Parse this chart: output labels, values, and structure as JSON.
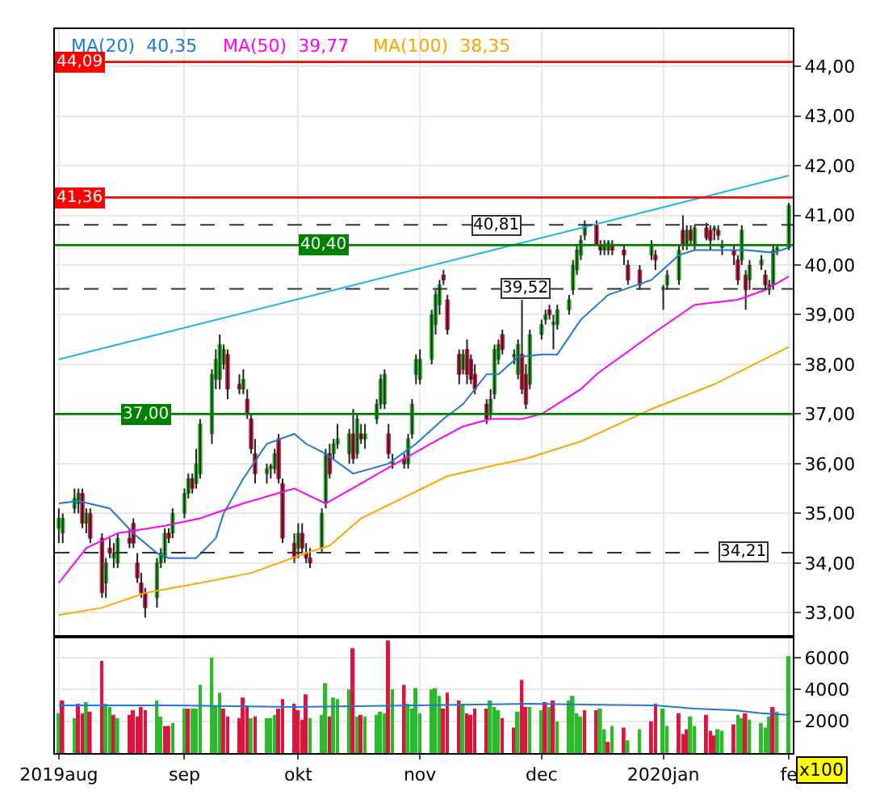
{
  "chart_data": [
    {
      "type": "candlestick",
      "x": [
        "2019-08-01",
        "2019-08-02",
        "2019-08-05",
        "2019-08-06",
        "2019-08-07",
        "2019-08-08",
        "2019-08-09",
        "2019-08-12",
        "2019-08-13",
        "2019-08-14",
        "2019-08-15",
        "2019-08-16",
        "2019-08-19",
        "2019-08-20",
        "2019-08-21",
        "2019-08-22",
        "2019-08-23",
        "2019-08-26",
        "2019-08-27",
        "2019-08-28",
        "2019-08-29",
        "2019-08-30",
        "2019-09-02",
        "2019-09-03",
        "2019-09-04",
        "2019-09-05",
        "2019-09-06",
        "2019-09-09",
        "2019-09-10",
        "2019-09-11",
        "2019-09-12",
        "2019-09-13",
        "2019-09-16",
        "2019-09-17",
        "2019-09-18",
        "2019-09-19",
        "2019-09-20",
        "2019-09-23",
        "2019-09-24",
        "2019-09-25",
        "2019-09-26",
        "2019-09-27",
        "2019-09-30",
        "2019-10-01",
        "2019-10-02",
        "2019-10-03",
        "2019-10-04",
        "2019-10-07",
        "2019-10-08",
        "2019-10-09",
        "2019-10-10",
        "2019-10-11",
        "2019-10-14",
        "2019-10-15",
        "2019-10-16",
        "2019-10-17",
        "2019-10-18",
        "2019-10-21",
        "2019-10-22",
        "2019-10-23",
        "2019-10-24",
        "2019-10-25",
        "2019-10-28",
        "2019-10-29",
        "2019-10-30",
        "2019-10-31",
        "2019-11-01",
        "2019-11-04",
        "2019-11-05",
        "2019-11-06",
        "2019-11-07",
        "2019-11-08",
        "2019-11-11",
        "2019-11-12",
        "2019-11-13",
        "2019-11-14",
        "2019-11-15",
        "2019-11-18",
        "2019-11-19",
        "2019-11-20",
        "2019-11-21",
        "2019-11-22",
        "2019-11-25",
        "2019-11-26",
        "2019-11-27",
        "2019-11-28",
        "2019-11-29",
        "2019-12-02",
        "2019-12-03",
        "2019-12-04",
        "2019-12-05",
        "2019-12-06",
        "2019-12-09",
        "2019-12-10",
        "2019-12-11",
        "2019-12-12",
        "2019-12-13",
        "2019-12-16",
        "2019-12-17",
        "2019-12-18",
        "2019-12-19",
        "2019-12-20",
        "2019-12-23",
        "2019-12-24",
        "2019-12-27",
        "2019-12-30",
        "2019-12-31",
        "2020-01-02",
        "2020-01-03",
        "2020-01-06",
        "2020-01-07",
        "2020-01-08",
        "2020-01-09",
        "2020-01-10",
        "2020-01-13",
        "2020-01-14",
        "2020-01-15",
        "2020-01-16",
        "2020-01-17",
        "2020-01-20",
        "2020-01-21",
        "2020-01-22",
        "2020-01-23",
        "2020-01-24",
        "2020-01-27",
        "2020-01-28",
        "2020-01-29",
        "2020-01-30",
        "2020-01-31",
        "2020-02-03"
      ],
      "series": [
        {
          "colors": [
            "#2eb82e",
            "#2eb82e",
            "#2eb82e",
            "#2eb82e",
            "#d8163f",
            "#2eb82e",
            "#d8163f",
            "#d8163f",
            "#2eb82e",
            "#d8163f",
            "#2eb82e",
            "#2eb82e",
            "#d8163f",
            "#d8163f",
            "#d8163f",
            "#d8163f",
            "#d8163f",
            "#2eb82e",
            "#2eb82e",
            "#2eb82e",
            "#d8163f",
            "#2eb82e",
            "#2eb82e",
            "#2eb82e",
            "#d8163f",
            "#2eb82e",
            "#2eb82e",
            "#2eb82e",
            "#2eb82e",
            "#2eb82e",
            "#2eb82e",
            "#d8163f",
            "#d8163f",
            "#2eb82e",
            "#d8163f",
            "#d8163f",
            "#d8163f",
            "#2eb82e",
            "#2eb82e",
            "#2eb82e",
            "#d8163f",
            "#d8163f",
            "#d8163f",
            "#2eb82e",
            "#d8163f",
            "#d8163f",
            "#d8163f",
            "#2eb82e",
            "#2eb82e",
            "#d8163f",
            "#2eb82e",
            "#2eb82e",
            "#2eb82e",
            "#d8163f",
            "#2eb82e",
            "#d8163f",
            "#2eb82e",
            "#2eb82e",
            "#2eb82e",
            "#2eb82e",
            "#d8163f",
            "#2eb82e",
            "#d8163f",
            "#2eb82e",
            "#2eb82e",
            "#2eb82e",
            "#2eb82e",
            "#2eb82e",
            "#2eb82e",
            "#2eb82e",
            "#d8163f",
            "#d8163f",
            "#d8163f",
            "#2eb82e",
            "#d8163f",
            "#d8163f",
            "#d8163f",
            "#d8163f",
            "#2eb82e",
            "#2eb82e",
            "#2eb82e",
            "#d8163f",
            "#2eb82e",
            "#2eb82e",
            "#d8163f",
            "#d8163f",
            "#2eb82e",
            "#2eb82e",
            "#2eb82e",
            "#d8163f",
            "#2eb82e",
            "#2eb82e",
            "#2eb82e",
            "#2eb82e",
            "#2eb82e",
            "#2eb82e",
            "#2eb82e",
            "#d8163f",
            "#d8163f",
            "#2eb82e",
            "#2eb82e",
            "#d8163f",
            "#d8163f",
            "#d8163f",
            "#d8163f",
            "#2eb82e",
            "#d8163f",
            "#2eb82e",
            "#2eb82e",
            "#2eb82e",
            "#d8163f",
            "#2eb82e",
            "#d8163f",
            "#2eb82e",
            "#d8163f",
            "#d8163f",
            "#2eb82e",
            "#d8163f",
            "#2eb82e",
            "#d8163f",
            "#d8163f",
            "#2eb82e",
            "#d8163f",
            "#2eb82e",
            "#2eb82e",
            "#d8163f",
            "#2eb82e",
            "#2eb82e",
            "#2eb82e",
            "#2eb82e"
          ],
          "ohlc": [
            [
              34.7,
              35.1,
              34.4,
              34.9
            ],
            [
              34.6,
              35.0,
              34.4,
              34.9
            ],
            [
              35.1,
              35.5,
              35.0,
              35.3
            ],
            [
              35.2,
              35.5,
              35.0,
              35.4
            ],
            [
              35.4,
              35.5,
              34.7,
              34.8
            ],
            [
              34.8,
              35.1,
              34.6,
              35.0
            ],
            [
              35.0,
              35.1,
              34.4,
              34.5
            ],
            [
              34.5,
              34.6,
              33.3,
              33.4
            ],
            [
              33.6,
              34.1,
              33.3,
              34.0
            ],
            [
              34.3,
              34.5,
              34.1,
              34.2
            ],
            [
              34.1,
              34.4,
              33.9,
              34.2
            ],
            [
              34.0,
              34.6,
              33.9,
              34.5
            ],
            [
              34.5,
              34.7,
              34.3,
              34.4
            ],
            [
              34.8,
              34.9,
              34.3,
              34.4
            ],
            [
              34.0,
              34.2,
              33.6,
              33.7
            ],
            [
              33.6,
              33.8,
              33.3,
              33.4
            ],
            [
              33.4,
              33.5,
              32.9,
              33.1
            ],
            [
              33.3,
              34.1,
              33.1,
              34.0
            ],
            [
              34.0,
              34.3,
              33.9,
              34.2
            ],
            [
              34.1,
              34.7,
              34.0,
              34.6
            ],
            [
              34.6,
              34.7,
              34.4,
              34.5
            ],
            [
              34.6,
              35.1,
              34.5,
              35.0
            ],
            [
              35.0,
              35.5,
              34.9,
              35.4
            ],
            [
              35.4,
              35.8,
              35.3,
              35.7
            ],
            [
              35.7,
              35.8,
              35.4,
              35.5
            ],
            [
              35.6,
              36.3,
              35.5,
              36.0
            ],
            [
              35.8,
              36.9,
              35.7,
              36.8
            ],
            [
              36.6,
              37.9,
              36.4,
              37.8
            ],
            [
              37.7,
              38.3,
              37.5,
              38.1
            ],
            [
              37.7,
              38.6,
              37.5,
              38.4
            ],
            [
              38.0,
              38.4,
              37.9,
              38.3
            ],
            [
              38.2,
              38.3,
              37.3,
              37.5
            ],
            [
              37.6,
              37.8,
              37.4,
              37.5
            ],
            [
              37.5,
              37.9,
              37.4,
              37.7
            ],
            [
              37.3,
              37.5,
              36.9,
              37.0
            ],
            [
              36.9,
              37.0,
              36.2,
              36.3
            ],
            [
              36.2,
              36.5,
              35.6,
              35.8
            ],
            [
              35.8,
              36.0,
              35.6,
              35.9
            ],
            [
              35.9,
              36.0,
              35.7,
              35.95
            ],
            [
              35.9,
              36.3,
              35.8,
              36.2
            ],
            [
              36.5,
              36.6,
              35.6,
              35.7
            ],
            [
              35.6,
              35.7,
              34.4,
              34.5
            ],
            [
              34.4,
              34.6,
              34.0,
              34.1
            ],
            [
              34.3,
              34.8,
              34.1,
              34.6
            ],
            [
              34.6,
              34.8,
              34.2,
              34.3
            ],
            [
              34.2,
              34.4,
              34.0,
              34.1
            ],
            [
              34.1,
              34.3,
              33.9,
              34.0
            ],
            [
              34.3,
              35.1,
              34.2,
              35.0
            ],
            [
              35.2,
              36.3,
              35.1,
              36.2
            ],
            [
              36.2,
              36.4,
              35.7,
              35.8
            ],
            [
              36.2,
              36.5,
              36.1,
              36.4
            ],
            [
              36.4,
              36.8,
              36.3,
              36.5
            ],
            [
              36.2,
              36.7,
              36.0,
              36.6
            ],
            [
              36.6,
              37.1,
              36.0,
              36.1
            ],
            [
              36.2,
              37.0,
              36.1,
              36.9
            ],
            [
              36.6,
              36.8,
              36.4,
              36.5
            ],
            [
              36.5,
              36.8,
              36.3,
              36.6
            ],
            [
              36.9,
              37.3,
              36.8,
              37.2
            ],
            [
              37.2,
              37.8,
              37.1,
              37.7
            ],
            [
              37.2,
              37.9,
              37.1,
              37.8
            ],
            [
              36.6,
              36.8,
              36.1,
              36.2
            ],
            [
              36.0,
              36.2,
              35.9,
              36.05
            ],
            [
              36.1,
              36.2,
              35.9,
              36.0
            ],
            [
              36.0,
              36.6,
              35.9,
              36.5
            ],
            [
              36.6,
              37.3,
              36.5,
              37.2
            ],
            [
              37.8,
              38.2,
              37.6,
              38.1
            ],
            [
              37.7,
              38.3,
              37.6,
              38.1
            ],
            [
              38.1,
              39.1,
              38.0,
              39.0
            ],
            [
              38.8,
              39.5,
              38.6,
              39.4
            ],
            [
              39.2,
              39.7,
              39.0,
              39.6
            ],
            [
              39.8,
              39.9,
              39.6,
              39.7
            ],
            [
              39.3,
              39.4,
              38.6,
              38.7
            ],
            [
              38.2,
              38.3,
              37.6,
              37.8
            ],
            [
              37.9,
              38.3,
              37.8,
              38.2
            ],
            [
              38.3,
              38.5,
              37.6,
              37.8
            ],
            [
              38.1,
              38.2,
              37.6,
              37.7
            ],
            [
              37.8,
              38.0,
              37.4,
              37.5
            ],
            [
              37.2,
              37.3,
              36.8,
              36.9
            ],
            [
              37.0,
              37.5,
              36.9,
              37.3
            ],
            [
              37.4,
              38.4,
              37.3,
              38.3
            ],
            [
              38.1,
              38.5,
              38.0,
              38.4
            ],
            [
              38.6,
              38.7,
              38.2,
              38.3
            ],
            [
              38.15,
              38.3,
              38.0,
              38.2
            ],
            [
              37.8,
              38.5,
              37.7,
              38.4
            ],
            [
              38.2,
              39.3,
              37.4,
              37.5
            ],
            [
              37.8,
              38.0,
              37.1,
              37.2
            ],
            [
              37.6,
              38.7,
              37.5,
              38.6
            ],
            [
              38.6,
              38.9,
              38.5,
              38.8
            ],
            [
              38.9,
              39.1,
              38.8,
              39.0
            ],
            [
              39.1,
              39.2,
              38.9,
              39.0
            ],
            [
              38.8,
              39.0,
              38.3,
              38.85
            ],
            [
              38.8,
              39.2,
              38.7,
              39.1
            ],
            [
              39.1,
              39.4,
              39.0,
              39.3
            ],
            [
              39.5,
              40.1,
              39.4,
              40.0
            ],
            [
              39.9,
              40.4,
              39.8,
              40.3
            ],
            [
              40.2,
              40.6,
              40.1,
              40.5
            ],
            [
              40.6,
              40.9,
              40.5,
              40.8
            ],
            [
              40.8,
              40.9,
              40.4,
              40.4
            ],
            [
              40.4,
              40.5,
              40.2,
              40.3
            ],
            [
              40.3,
              40.5,
              40.2,
              40.4
            ],
            [
              40.3,
              40.5,
              40.2,
              40.45
            ],
            [
              40.4,
              40.5,
              40.2,
              40.3
            ],
            [
              40.3,
              40.4,
              40.0,
              40.2
            ],
            [
              40.0,
              40.1,
              39.6,
              39.7
            ],
            [
              39.9,
              40.0,
              39.5,
              39.6
            ],
            [
              40.2,
              40.5,
              40.1,
              40.4
            ],
            [
              40.2,
              40.3,
              39.9,
              40.1
            ],
            [
              39.5,
              39.6,
              39.1,
              39.55
            ],
            [
              39.6,
              39.9,
              39.5,
              39.8
            ],
            [
              39.7,
              40.4,
              39.6,
              40.3
            ],
            [
              40.7,
              41.0,
              40.3,
              40.4
            ],
            [
              40.4,
              40.8,
              40.3,
              40.7
            ],
            [
              40.7,
              40.8,
              40.4,
              40.5
            ],
            [
              40.4,
              40.8,
              40.3,
              40.75
            ],
            [
              40.75,
              40.85,
              40.5,
              40.55
            ],
            [
              40.7,
              40.8,
              40.3,
              40.5
            ],
            [
              40.7,
              40.8,
              40.5,
              40.75
            ],
            [
              40.7,
              40.8,
              40.5,
              40.6
            ],
            [
              40.35,
              40.5,
              40.2,
              40.4
            ],
            [
              40.3,
              40.4,
              40.0,
              40.2
            ],
            [
              40.1,
              40.2,
              39.6,
              39.7
            ],
            [
              40.1,
              40.8,
              40.0,
              40.7
            ],
            [
              39.8,
              39.9,
              39.1,
              39.5
            ],
            [
              39.7,
              40.1,
              39.5,
              40.0
            ],
            [
              40.0,
              40.2,
              39.9,
              40.1
            ],
            [
              39.8,
              39.9,
              39.5,
              39.6
            ],
            [
              39.5,
              39.7,
              39.4,
              39.6
            ],
            [
              39.6,
              40.4,
              39.5,
              40.3
            ],
            [
              40.3,
              40.4,
              40.2,
              40.35
            ],
            [
              40.35,
              41.25,
              40.3,
              41.2
            ]
          ]
        },
        {
          "type": "line",
          "name": "MA(20)  40,35",
          "color": "#1f78d1",
          "x": [
            "2019-08-01",
            "2019-08-06",
            "2019-08-14",
            "2019-08-20",
            "2019-08-26",
            "2019-08-29",
            "2019-09-05",
            "2019-09-10",
            "2019-09-12",
            "2019-09-17",
            "2019-09-23",
            "2019-09-30",
            "2019-10-03",
            "2019-10-08",
            "2019-10-15",
            "2019-10-24",
            "2019-10-31",
            "2019-11-07",
            "2019-11-12",
            "2019-11-18",
            "2019-11-21",
            "2019-11-26",
            "2019-12-02",
            "2019-12-06",
            "2019-12-12",
            "2019-12-19",
            "2019-12-30",
            "2020-01-06",
            "2020-01-10",
            "2020-01-23",
            "2020-01-30",
            "2020-02-03"
          ],
          "values": [
            35.2,
            35.25,
            35.1,
            34.6,
            34.2,
            34.1,
            34.1,
            34.5,
            35.0,
            35.7,
            36.4,
            36.6,
            36.4,
            36.2,
            35.8,
            36.0,
            36.4,
            36.9,
            37.2,
            37.8,
            37.8,
            38.15,
            38.2,
            38.2,
            38.9,
            39.4,
            39.7,
            40.2,
            40.3,
            40.3,
            40.25,
            40.35
          ]
        },
        {
          "type": "line",
          "name": "MA(50)  39,77",
          "color": "#ff00ff",
          "x": [
            "2019-08-01",
            "2019-08-08",
            "2019-08-16",
            "2019-08-28",
            "2019-09-06",
            "2019-09-17",
            "2019-09-30",
            "2019-10-08",
            "2019-10-17",
            "2019-10-28",
            "2019-11-06",
            "2019-11-12",
            "2019-11-19",
            "2019-11-27",
            "2019-12-02",
            "2019-12-12",
            "2019-12-16",
            "2019-12-30",
            "2020-01-10",
            "2020-01-21",
            "2020-01-28",
            "2020-02-03"
          ],
          "values": [
            33.6,
            34.3,
            34.6,
            34.75,
            34.9,
            35.2,
            35.5,
            35.2,
            35.6,
            36.1,
            36.5,
            36.75,
            36.9,
            36.9,
            37.0,
            37.5,
            37.8,
            38.6,
            39.2,
            39.3,
            39.5,
            39.77
          ]
        },
        {
          "type": "line",
          "name": "MA(100)  38,35",
          "color": "#ffa500",
          "x": [
            "2019-08-01",
            "2019-08-12",
            "2019-08-23",
            "2019-09-06",
            "2019-09-19",
            "2019-10-03",
            "2019-10-09",
            "2019-10-17",
            "2019-10-30",
            "2019-11-08",
            "2019-11-19",
            "2019-11-28",
            "2019-12-12",
            "2019-12-30",
            "2020-01-15",
            "2020-02-03"
          ],
          "values": [
            32.95,
            33.1,
            33.4,
            33.6,
            33.8,
            34.2,
            34.35,
            34.9,
            35.4,
            35.75,
            35.95,
            36.1,
            36.45,
            37.1,
            37.6,
            38.35
          ]
        },
        {
          "type": "line",
          "color": "#19b4f0",
          "x": [
            "2019-08-01",
            "2020-02-03"
          ],
          "values": [
            38.1,
            41.8
          ]
        }
      ],
      "xlim": [
        "2019-07-31",
        "2020-02-04"
      ],
      "xticks": [
        {
          "value": "2019-08-01",
          "label": null
        },
        {
          "value": "2019-09-02",
          "label": null
        },
        {
          "value": "2019-10-01",
          "label": null
        },
        {
          "value": "2019-11-01",
          "label": null
        },
        {
          "value": "2019-12-02",
          "label": null
        },
        {
          "value": "2020-01-02",
          "label": null
        },
        {
          "value": "2020-02-03",
          "label": null
        }
      ],
      "ylim": [
        32.55,
        44.75
      ],
      "yticks": [
        {
          "value": 33,
          "label": "33,00"
        },
        {
          "value": 34,
          "label": "34,00"
        },
        {
          "value": 35,
          "label": "35,00"
        },
        {
          "value": 36,
          "label": "36,00"
        },
        {
          "value": 37,
          "label": "37,00"
        },
        {
          "value": 38,
          "label": "38,00"
        },
        {
          "value": 39,
          "label": "39,00"
        },
        {
          "value": 40,
          "label": "40,00"
        },
        {
          "value": 41,
          "label": "41,00"
        },
        {
          "value": 42,
          "label": "42,00"
        },
        {
          "value": 43,
          "label": "43,00"
        },
        {
          "value": 44,
          "label": "44,00"
        }
      ],
      "ref_lines": [
        {
          "axis": "y",
          "value": 44.09,
          "label": "44,09",
          "color": "#ff0000"
        },
        {
          "axis": "y",
          "value": 41.36,
          "label": "41,36",
          "color": "#ff0000"
        },
        {
          "axis": "y",
          "value": 40.4,
          "label": "40,40",
          "color": "#008000"
        },
        {
          "axis": "y",
          "value": 37.0,
          "label": "37,00",
          "color": "#008000"
        },
        {
          "axis": "y",
          "value": 40.81,
          "label": "40,81",
          "color": "#333333",
          "line_style": "dashed"
        },
        {
          "axis": "y",
          "value": 39.52,
          "label": "39,52",
          "color": "#333333",
          "line_style": "dashed"
        },
        {
          "axis": "y",
          "value": 34.21,
          "label": "34,21",
          "color": "#333333",
          "line_style": "dashed"
        }
      ],
      "grid": true,
      "tick_labels": "y"
    },
    {
      "type": "bar",
      "x": [
        "2019-08-01",
        "2019-08-02",
        "2019-08-05",
        "2019-08-06",
        "2019-08-07",
        "2019-08-08",
        "2019-08-09",
        "2019-08-12",
        "2019-08-13",
        "2019-08-14",
        "2019-08-15",
        "2019-08-16",
        "2019-08-19",
        "2019-08-20",
        "2019-08-21",
        "2019-08-22",
        "2019-08-23",
        "2019-08-26",
        "2019-08-27",
        "2019-08-28",
        "2019-08-29",
        "2019-08-30",
        "2019-09-02",
        "2019-09-03",
        "2019-09-04",
        "2019-09-05",
        "2019-09-06",
        "2019-09-09",
        "2019-09-10",
        "2019-09-11",
        "2019-09-12",
        "2019-09-13",
        "2019-09-16",
        "2019-09-17",
        "2019-09-18",
        "2019-09-19",
        "2019-09-20",
        "2019-09-23",
        "2019-09-24",
        "2019-09-25",
        "2019-09-26",
        "2019-09-27",
        "2019-09-30",
        "2019-10-01",
        "2019-10-02",
        "2019-10-03",
        "2019-10-04",
        "2019-10-07",
        "2019-10-08",
        "2019-10-09",
        "2019-10-10",
        "2019-10-11",
        "2019-10-14",
        "2019-10-15",
        "2019-10-16",
        "2019-10-17",
        "2019-10-18",
        "2019-10-21",
        "2019-10-22",
        "2019-10-23",
        "2019-10-24",
        "2019-10-25",
        "2019-10-28",
        "2019-10-29",
        "2019-10-30",
        "2019-10-31",
        "2019-11-01",
        "2019-11-04",
        "2019-11-05",
        "2019-11-06",
        "2019-11-07",
        "2019-11-08",
        "2019-11-11",
        "2019-11-12",
        "2019-11-13",
        "2019-11-14",
        "2019-11-15",
        "2019-11-18",
        "2019-11-19",
        "2019-11-20",
        "2019-11-21",
        "2019-11-22",
        "2019-11-25",
        "2019-11-26",
        "2019-11-27",
        "2019-11-28",
        "2019-11-29",
        "2019-12-02",
        "2019-12-03",
        "2019-12-04",
        "2019-12-05",
        "2019-12-06",
        "2019-12-09",
        "2019-12-10",
        "2019-12-11",
        "2019-12-12",
        "2019-12-13",
        "2019-12-16",
        "2019-12-17",
        "2019-12-18",
        "2019-12-19",
        "2019-12-20",
        "2019-12-23",
        "2019-12-24",
        "2019-12-27",
        "2019-12-30",
        "2019-12-31",
        "2020-01-02",
        "2020-01-03",
        "2020-01-06",
        "2020-01-07",
        "2020-01-08",
        "2020-01-09",
        "2020-01-10",
        "2020-01-13",
        "2020-01-14",
        "2020-01-15",
        "2020-01-16",
        "2020-01-17",
        "2020-01-20",
        "2020-01-21",
        "2020-01-22",
        "2020-01-23",
        "2020-01-24",
        "2020-01-27",
        "2020-01-28",
        "2020-01-29",
        "2020-01-30",
        "2020-01-31",
        "2020-02-03"
      ],
      "series": [
        {
          "values": [
            2500,
            3300,
            2200,
            3100,
            2500,
            3200,
            2600,
            5800,
            3100,
            2900,
            2400,
            2200,
            2400,
            2700,
            2300,
            2900,
            2700,
            3300,
            2300,
            1700,
            1700,
            1900,
            2800,
            2800,
            2800,
            2800,
            4300,
            6000,
            3000,
            3800,
            2800,
            2300,
            2200,
            3500,
            3000,
            2200,
            2300,
            2200,
            2200,
            2400,
            2800,
            3400,
            3100,
            2700,
            2100,
            3700,
            2200,
            2400,
            4400,
            2300,
            3500,
            3400,
            4000,
            6600,
            2300,
            2400,
            2300,
            2400,
            2600,
            2500,
            7100,
            4000,
            4300,
            3100,
            2800,
            4100,
            2500,
            4000,
            4100,
            3600,
            2800,
            3800,
            3300,
            3100,
            2500,
            2400,
            2800,
            2800,
            3300,
            2900,
            2700,
            2200,
            1600,
            2600,
            4600,
            2900,
            2900,
            2700,
            3200,
            2900,
            3300,
            2000,
            3300,
            3600,
            2500,
            2300,
            2700,
            2700,
            2800,
            1500,
            700,
            1700,
            1600,
            800,
            1500,
            2000,
            3100,
            2800,
            1700,
            2500,
            1200,
            1500,
            2300,
            1700,
            2400,
            1400,
            1100,
            1500,
            1400,
            1800,
            2400,
            2200,
            2500,
            2100,
            1900,
            1600,
            2300,
            2900,
            2600,
            6100
          ],
          "colors": [
            "#2eb82e",
            "#d8163f",
            "#2eb82e",
            "#d8163f",
            "#d8163f",
            "#2eb82e",
            "#d8163f",
            "#d8163f",
            "#2eb82e",
            "#2eb82e",
            "#d8163f",
            "#2eb82e",
            "#d8163f",
            "#d8163f",
            "#d8163f",
            "#d8163f",
            "#d8163f",
            "#2eb82e",
            "#2eb82e",
            "#d8163f",
            "#d8163f",
            "#2eb82e",
            "#2eb82e",
            "#d8163f",
            "#2eb82e",
            "#2eb82e",
            "#2eb82e",
            "#2eb82e",
            "#2eb82e",
            "#2eb82e",
            "#d8163f",
            "#d8163f",
            "#d8163f",
            "#d8163f",
            "#d8163f",
            "#2eb82e",
            "#d8163f",
            "#2eb82e",
            "#2eb82e",
            "#2eb82e",
            "#d8163f",
            "#d8163f",
            "#d8163f",
            "#d8163f",
            "#d8163f",
            "#d8163f",
            "#2eb82e",
            "#2eb82e",
            "#2eb82e",
            "#d8163f",
            "#2eb82e",
            "#2eb82e",
            "#2eb82e",
            "#d8163f",
            "#2eb82e",
            "#d8163f",
            "#2eb82e",
            "#2eb82e",
            "#2eb82e",
            "#2eb82e",
            "#d8163f",
            "#2eb82e",
            "#d8163f",
            "#2eb82e",
            "#2eb82e",
            "#2eb82e",
            "#2eb82e",
            "#2eb82e",
            "#2eb82e",
            "#2eb82e",
            "#d8163f",
            "#d8163f",
            "#d8163f",
            "#2eb82e",
            "#d8163f",
            "#d8163f",
            "#d8163f",
            "#d8163f",
            "#2eb82e",
            "#2eb82e",
            "#2eb82e",
            "#d8163f",
            "#d8163f",
            "#2eb82e",
            "#d8163f",
            "#d8163f",
            "#2eb82e",
            "#2eb82e",
            "#d8163f",
            "#2eb82e",
            "#d8163f",
            "#2eb82e",
            "#2eb82e",
            "#2eb82e",
            "#2eb82e",
            "#2eb82e",
            "#d8163f",
            "#d8163f",
            "#2eb82e",
            "#2eb82e",
            "#d8163f",
            "#2eb82e",
            "#d8163f",
            "#2eb82e",
            "#2eb82e",
            "#d8163f",
            "#d8163f",
            "#2eb82e",
            "#2eb82e",
            "#d8163f",
            "#d8163f",
            "#d8163f",
            "#2eb82e",
            "#2eb82e",
            "#d8163f",
            "#d8163f",
            "#d8163f",
            "#2eb82e",
            "#2eb82e",
            "#d8163f",
            "#2eb82e",
            "#2eb82e",
            "#d8163f",
            "#2eb82e",
            "#2eb82e",
            "#2eb82e",
            "#2eb82e",
            "#d8163f",
            "#2eb82e",
            "#2eb82e"
          ]
        },
        {
          "type": "line",
          "color": "#1f78d1",
          "x": [
            "2019-08-01",
            "2019-08-30",
            "2019-09-30",
            "2019-10-31",
            "2019-11-29",
            "2019-12-31",
            "2020-01-10",
            "2020-01-20",
            "2020-01-27",
            "2020-02-03"
          ],
          "values": [
            3000,
            3000,
            2900,
            3000,
            3100,
            3000,
            2800,
            2700,
            2500,
            2400
          ]
        }
      ],
      "xlim": [
        "2019-07-31",
        "2020-02-04"
      ],
      "xticks": [
        {
          "value": "2019-08-01",
          "label": "2019aug"
        },
        {
          "value": "2019-09-02",
          "label": "sep"
        },
        {
          "value": "2019-10-01",
          "label": "okt"
        },
        {
          "value": "2019-11-01",
          "label": "nov"
        },
        {
          "value": "2019-12-02",
          "label": "dec"
        },
        {
          "value": "2020-01-02",
          "label": "2020jan"
        },
        {
          "value": "2020-02-03",
          "label": "fe"
        }
      ],
      "ylim": [
        0,
        7200
      ],
      "yticks": [
        2000,
        4000,
        6000
      ],
      "annotations": [
        "x100"
      ],
      "grid": true
    }
  ]
}
